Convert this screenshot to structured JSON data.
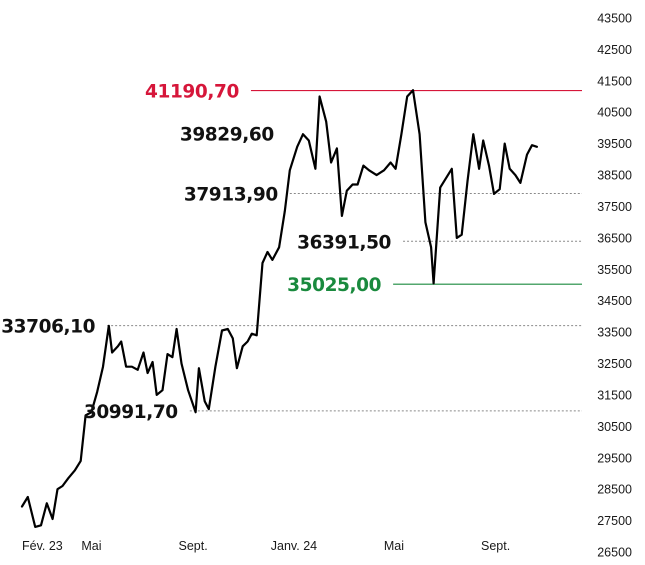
{
  "chart_data": {
    "type": "line",
    "title": "",
    "xlabel": "",
    "ylabel": "",
    "ylim": [
      26500,
      43500
    ],
    "yticks": [
      26500,
      27500,
      28500,
      29500,
      30500,
      31500,
      32500,
      33500,
      34500,
      35500,
      36500,
      37500,
      38500,
      39500,
      40500,
      41500,
      42500,
      43500
    ],
    "ytick_labels": [
      "26500",
      "27500",
      "28500",
      "29500",
      "30500",
      "31500",
      "32500",
      "33500",
      "34500",
      "35500",
      "36500",
      "37500",
      "38500",
      "39500",
      "40500",
      "41500",
      "42500",
      "43500"
    ],
    "xaxis": {
      "start": "2023-02-06",
      "end": "2024-11-30",
      "ticks": [
        {
          "date": "2023-02-06",
          "label": "Fév. 23"
        },
        {
          "date": "2023-05-01",
          "label": "Mai"
        },
        {
          "date": "2023-09-01",
          "label": "Sept."
        },
        {
          "date": "2024-01-01",
          "label": "Janv. 24"
        },
        {
          "date": "2024-05-01",
          "label": "Mai"
        },
        {
          "date": "2024-09-01",
          "label": "Sept."
        }
      ]
    },
    "grid": false,
    "series": [
      {
        "points": [
          [
            "2023-02-06",
            27950
          ],
          [
            "2023-02-13",
            28250
          ],
          [
            "2023-02-22",
            27300
          ],
          [
            "2023-03-01",
            27350
          ],
          [
            "2023-03-08",
            28050
          ],
          [
            "2023-03-15",
            27550
          ],
          [
            "2023-03-21",
            28500
          ],
          [
            "2023-03-27",
            28600
          ],
          [
            "2023-04-03",
            28850
          ],
          [
            "2023-04-11",
            29100
          ],
          [
            "2023-04-18",
            29400
          ],
          [
            "2023-04-24",
            30850
          ],
          [
            "2023-05-01",
            30950
          ],
          [
            "2023-05-08",
            31600
          ],
          [
            "2023-05-15",
            32400
          ],
          [
            "2023-05-22",
            33700
          ],
          [
            "2023-05-26",
            32850
          ],
          [
            "2023-06-02",
            33050
          ],
          [
            "2023-06-06",
            33200
          ],
          [
            "2023-06-12",
            32400
          ],
          [
            "2023-06-19",
            32400
          ],
          [
            "2023-06-26",
            32300
          ],
          [
            "2023-07-03",
            32850
          ],
          [
            "2023-07-08",
            32200
          ],
          [
            "2023-07-14",
            32550
          ],
          [
            "2023-07-19",
            31500
          ],
          [
            "2023-07-26",
            31650
          ],
          [
            "2023-08-01",
            32800
          ],
          [
            "2023-08-07",
            32700
          ],
          [
            "2023-08-12",
            33600
          ],
          [
            "2023-08-18",
            32500
          ],
          [
            "2023-08-26",
            31650
          ],
          [
            "2023-09-04",
            30950
          ],
          [
            "2023-09-08",
            32350
          ],
          [
            "2023-09-15",
            31300
          ],
          [
            "2023-09-20",
            31050
          ],
          [
            "2023-09-28",
            32400
          ],
          [
            "2023-10-06",
            33550
          ],
          [
            "2023-10-13",
            33600
          ],
          [
            "2023-10-19",
            33300
          ],
          [
            "2023-10-24",
            32350
          ],
          [
            "2023-10-31",
            33050
          ],
          [
            "2023-11-06",
            33200
          ],
          [
            "2023-11-11",
            33450
          ],
          [
            "2023-11-17",
            33400
          ],
          [
            "2023-11-24",
            35700
          ],
          [
            "2023-11-30",
            36050
          ],
          [
            "2023-12-06",
            35800
          ],
          [
            "2023-12-14",
            36200
          ],
          [
            "2023-12-21",
            37350
          ],
          [
            "2023-12-27",
            38650
          ],
          [
            "2024-01-05",
            39400
          ],
          [
            "2024-01-12",
            39800
          ],
          [
            "2024-01-19",
            39600
          ],
          [
            "2024-01-27",
            38700
          ],
          [
            "2024-02-01",
            41000
          ],
          [
            "2024-02-09",
            40200
          ],
          [
            "2024-02-15",
            38900
          ],
          [
            "2024-02-22",
            39350
          ],
          [
            "2024-02-28",
            37200
          ],
          [
            "2024-03-05",
            38000
          ],
          [
            "2024-03-12",
            38200
          ],
          [
            "2024-03-18",
            38200
          ],
          [
            "2024-03-25",
            38800
          ],
          [
            "2024-04-01",
            38650
          ],
          [
            "2024-04-10",
            38500
          ],
          [
            "2024-04-19",
            38650
          ],
          [
            "2024-04-27",
            38900
          ],
          [
            "2024-05-03",
            38700
          ],
          [
            "2024-05-10",
            39800
          ],
          [
            "2024-05-17",
            41000
          ],
          [
            "2024-05-24",
            41200
          ],
          [
            "2024-06-01",
            39800
          ],
          [
            "2024-06-08",
            37000
          ],
          [
            "2024-06-15",
            36200
          ],
          [
            "2024-06-18",
            35050
          ],
          [
            "2024-06-26",
            38100
          ],
          [
            "2024-07-03",
            38400
          ],
          [
            "2024-07-10",
            38700
          ],
          [
            "2024-07-16",
            36500
          ],
          [
            "2024-07-22",
            36600
          ],
          [
            "2024-07-29",
            38300
          ],
          [
            "2024-08-05",
            39800
          ],
          [
            "2024-08-12",
            38700
          ],
          [
            "2024-08-17",
            39600
          ],
          [
            "2024-08-24",
            38800
          ],
          [
            "2024-08-30",
            37900
          ],
          [
            "2024-09-06",
            38050
          ],
          [
            "2024-09-12",
            39500
          ],
          [
            "2024-09-18",
            38700
          ],
          [
            "2024-09-25",
            38500
          ],
          [
            "2024-10-01",
            38250
          ],
          [
            "2024-10-09",
            39150
          ],
          [
            "2024-10-15",
            39450
          ],
          [
            "2024-10-21",
            39400
          ]
        ]
      }
    ],
    "annotations": [
      {
        "label": "41190,70",
        "value": 41190.7,
        "color": "#d6163a",
        "line_style": "solid",
        "line_from": "2023-11-10"
      },
      {
        "label": "39829,60",
        "value": 39829.6,
        "color": "#111111",
        "line_style": "none"
      },
      {
        "label": "37913,90",
        "value": 37913.9,
        "color": "#111111",
        "line_style": "dotted",
        "line_from": "2023-12-27"
      },
      {
        "label": "36391,50",
        "value": 36391.5,
        "color": "#111111",
        "line_style": "dotted",
        "line_from": "2024-05-12"
      },
      {
        "label": "35025,00",
        "value": 35025.0,
        "color": "#1a8a3e",
        "line_style": "solid",
        "line_from": "2024-04-30"
      },
      {
        "label": "33706,10",
        "value": 33706.1,
        "color": "#111111",
        "line_style": "dotted",
        "line_from": "2023-05-20"
      },
      {
        "label": "30991,70",
        "value": 30991.7,
        "color": "#111111",
        "line_style": "dotted",
        "line_from": "2023-08-28"
      }
    ]
  }
}
